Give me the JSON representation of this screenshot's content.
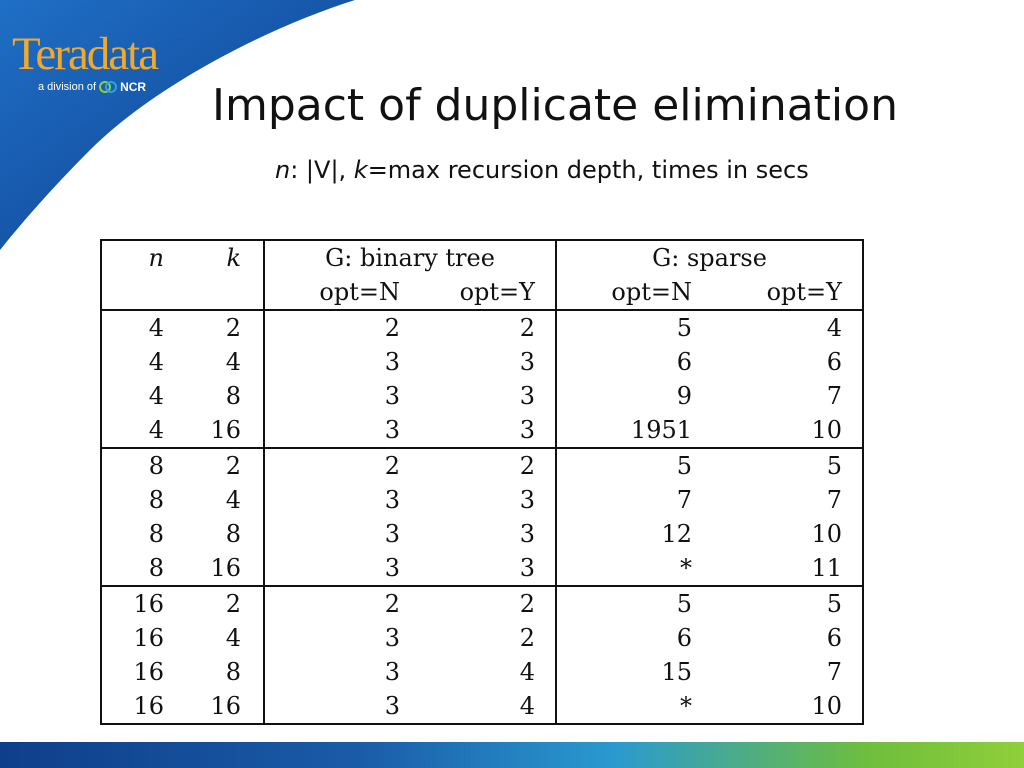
{
  "logo": {
    "word": "Teradata",
    "division": "a division of",
    "ncr": "NCR"
  },
  "title": "Impact of duplicate elimination",
  "subtitle": {
    "n": "n",
    "part1": ": |V|, ",
    "k": "k",
    "part2": "=max recursion depth, times in secs"
  },
  "table": {
    "headers": {
      "n": "n",
      "k": "k",
      "binary_tree": "G: binary tree",
      "sparse": "G: sparse",
      "opt_n": "opt=N",
      "opt_y": "opt=Y"
    },
    "groups": [
      {
        "rows": [
          [
            "4",
            "2",
            "2",
            "2",
            "5",
            "4"
          ],
          [
            "4",
            "4",
            "3",
            "3",
            "6",
            "6"
          ],
          [
            "4",
            "8",
            "3",
            "3",
            "9",
            "7"
          ],
          [
            "4",
            "16",
            "3",
            "3",
            "1951",
            "10"
          ]
        ]
      },
      {
        "rows": [
          [
            "8",
            "2",
            "2",
            "2",
            "5",
            "5"
          ],
          [
            "8",
            "4",
            "3",
            "3",
            "7",
            "7"
          ],
          [
            "8",
            "8",
            "3",
            "3",
            "12",
            "10"
          ],
          [
            "8",
            "16",
            "3",
            "3",
            "*",
            "11"
          ]
        ]
      },
      {
        "rows": [
          [
            "16",
            "2",
            "2",
            "2",
            "5",
            "5"
          ],
          [
            "16",
            "4",
            "3",
            "2",
            "6",
            "6"
          ],
          [
            "16",
            "8",
            "3",
            "4",
            "15",
            "7"
          ],
          [
            "16",
            "16",
            "3",
            "4",
            "*",
            "10"
          ]
        ]
      }
    ]
  },
  "colors": {
    "swoosh_dark": "#0d3d8c",
    "swoosh_light": "#1f6fc6",
    "logo_orange": "#f0a92c"
  }
}
